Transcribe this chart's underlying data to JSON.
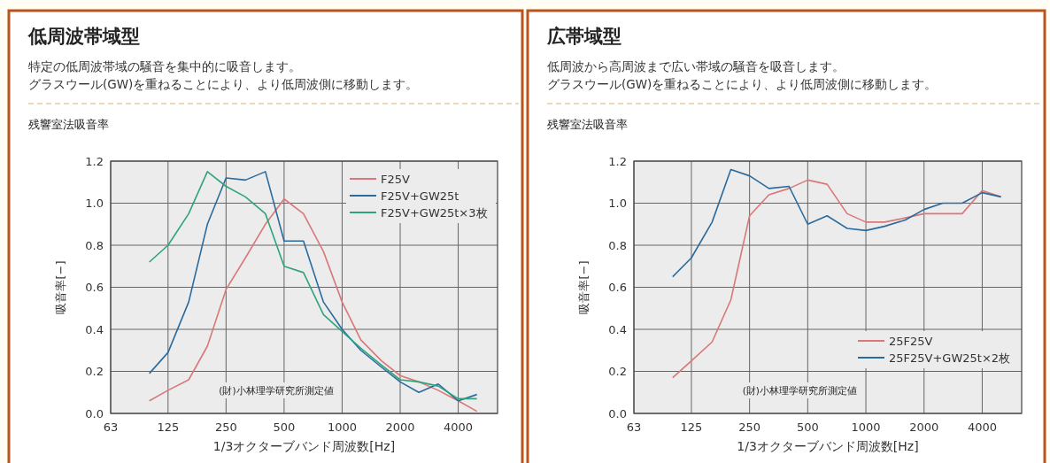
{
  "chart_data": [
    {
      "type": "line",
      "title": "低周波帯域型",
      "subtitle": "特定の低周波帯域の騒音を集中的に吸音します。",
      "annotations": [
        "グラスウール(GW)を重ねることにより、より低周波側に移動します。",
        "残響室法吸音率",
        "(財)小林理学研究所測定値"
      ],
      "xlabel": "1/3オクターブバンド周波数[Hz]",
      "ylabel": "吸音率[−]",
      "log": "x",
      "x": [
        100,
        125,
        160,
        200,
        250,
        315,
        400,
        500,
        630,
        800,
        1000,
        1250,
        1600,
        2000,
        2500,
        3150,
        4000,
        5000
      ],
      "xlim": [
        63,
        6400
      ],
      "xticks": [
        63,
        125,
        250,
        500,
        1000,
        2000,
        4000
      ],
      "ylim": [
        0,
        1.2
      ],
      "yticks": [
        {
          "value": 0,
          "label": "0.0"
        },
        {
          "value": 0.2,
          "label": "0.2"
        },
        {
          "value": 0.4,
          "label": "0.4"
        },
        {
          "value": 0.6,
          "label": "0.6"
        },
        {
          "value": 0.8,
          "label": "0.8"
        },
        {
          "value": 1,
          "label": "1.0"
        },
        {
          "value": 1.2,
          "label": "1.2"
        }
      ],
      "grid": true,
      "legend": "top right",
      "marker": "none",
      "line_style": "solid",
      "series": [
        {
          "name": "F25V",
          "color": "#d9777a",
          "values": [
            0.06,
            0.11,
            0.16,
            0.32,
            0.59,
            0.74,
            0.9,
            1.02,
            0.95,
            0.77,
            0.53,
            0.35,
            0.25,
            0.18,
            0.15,
            0.11,
            0.06,
            0.01
          ]
        },
        {
          "name": "F25V+GW25t",
          "color": "#2b6a9c",
          "values": [
            0.19,
            0.29,
            0.53,
            0.9,
            1.12,
            1.11,
            1.15,
            0.82,
            0.82,
            0.53,
            0.4,
            0.3,
            0.22,
            0.15,
            0.1,
            0.14,
            0.06,
            0.09
          ]
        },
        {
          "name": "F25V+GW25t×3枚",
          "color": "#2ea47c",
          "values": [
            0.72,
            0.8,
            0.95,
            1.15,
            1.08,
            1.03,
            0.95,
            0.7,
            0.67,
            0.47,
            0.39,
            0.31,
            0.23,
            0.16,
            0.15,
            0.13,
            0.07,
            0.07
          ]
        }
      ]
    },
    {
      "type": "line",
      "title": "広帯域型",
      "subtitle": "低周波から高周波まで広い帯域の騒音を吸音します。",
      "annotations": [
        "グラスウール(GW)を重ねることにより、より低周波側に移動します。",
        "残響室法吸音率",
        "(財)小林理学研究所測定値"
      ],
      "xlabel": "1/3オクターブバンド周波数[Hz]",
      "ylabel": "吸音率[−]",
      "log": "x",
      "x": [
        100,
        125,
        160,
        200,
        250,
        315,
        400,
        500,
        630,
        800,
        1000,
        1250,
        1600,
        2000,
        2500,
        3150,
        4000,
        5000
      ],
      "xlim": [
        63,
        6400
      ],
      "xticks": [
        63,
        125,
        250,
        500,
        1000,
        2000,
        4000
      ],
      "ylim": [
        0,
        1.2
      ],
      "yticks": [
        {
          "value": 0,
          "label": "0.0"
        },
        {
          "value": 0.2,
          "label": "0.2"
        },
        {
          "value": 0.4,
          "label": "0.4"
        },
        {
          "value": 0.6,
          "label": "0.6"
        },
        {
          "value": 0.8,
          "label": "0.8"
        },
        {
          "value": 1,
          "label": "1.0"
        },
        {
          "value": 1.2,
          "label": "1.2"
        }
      ],
      "grid": true,
      "legend": "bottom right",
      "marker": "none",
      "line_style": "solid",
      "series": [
        {
          "name": "25F25V",
          "color": "#d9777a",
          "values": [
            0.17,
            0.25,
            0.34,
            0.54,
            0.94,
            1.04,
            1.07,
            1.11,
            1.09,
            0.95,
            0.91,
            0.91,
            0.93,
            0.95,
            0.95,
            0.95,
            1.06,
            1.03
          ]
        },
        {
          "name": "25F25V+GW25t×2枚",
          "color": "#2b6a9c",
          "values": [
            0.65,
            0.74,
            0.91,
            1.16,
            1.13,
            1.07,
            1.08,
            0.9,
            0.94,
            0.88,
            0.87,
            0.89,
            0.92,
            0.97,
            1.0,
            1.0,
            1.05,
            1.03
          ]
        }
      ]
    }
  ]
}
